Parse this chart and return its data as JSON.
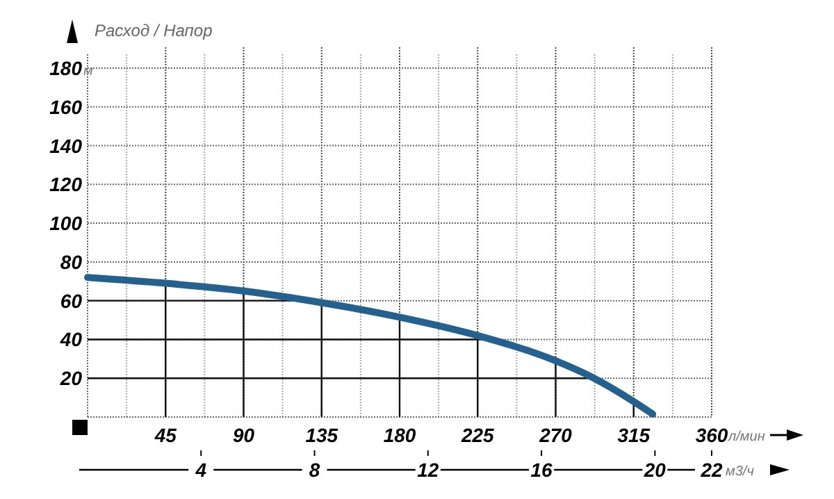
{
  "chart_data": {
    "type": "line",
    "title": "Расход / Напор",
    "ylabel": "м",
    "xlabel": "л/мин",
    "x2label": "м3/ч",
    "xlim": [
      0,
      360
    ],
    "xticks": [
      45,
      90,
      135,
      180,
      225,
      270,
      315,
      360
    ],
    "x2lim": [
      0,
      22
    ],
    "x2ticks": [
      4,
      8,
      12,
      16,
      20,
      22
    ],
    "ylim": [
      0,
      180
    ],
    "yticks": [
      20,
      40,
      60,
      80,
      100,
      120,
      140,
      160,
      180
    ],
    "grid": true,
    "series": [
      {
        "color": "#24618f",
        "x": [
          0,
          45,
          90,
          135,
          180,
          225,
          270,
          290,
          315,
          326
        ],
        "values": [
          72,
          69,
          65,
          59,
          51.5,
          42,
          29,
          21,
          8,
          1.5
        ]
      }
    ]
  }
}
